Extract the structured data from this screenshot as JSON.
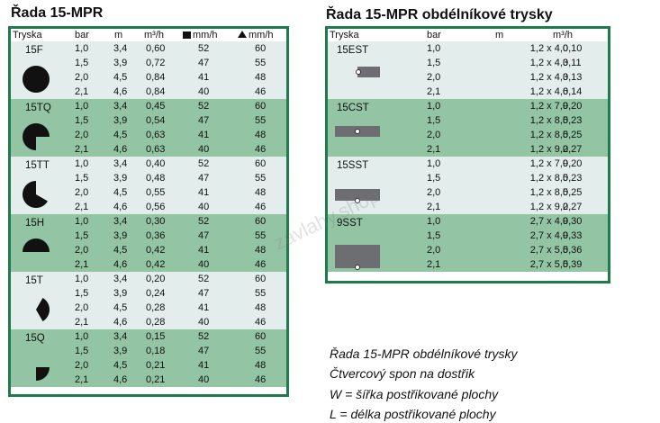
{
  "left": {
    "title": "Řada 15-MPR",
    "headers": {
      "nozzle": "Tryska",
      "bar": "bar",
      "m": "m",
      "flow": "m³/h",
      "sq": "mm/h",
      "tri": "mm/h"
    },
    "groups": [
      {
        "name": "15F",
        "shape": "full",
        "rows": [
          [
            "1,0",
            "3,4",
            "0,60",
            "52",
            "60"
          ],
          [
            "1,5",
            "3,9",
            "0,72",
            "47",
            "55"
          ],
          [
            "2,0",
            "4,5",
            "0,84",
            "41",
            "48"
          ],
          [
            "2,1",
            "4,6",
            "0,84",
            "40",
            "46"
          ]
        ]
      },
      {
        "name": "15TQ",
        "shape": "three-quarter",
        "rows": [
          [
            "1,0",
            "3,4",
            "0,45",
            "52",
            "60"
          ],
          [
            "1,5",
            "3,9",
            "0,54",
            "47",
            "55"
          ],
          [
            "2,0",
            "4,5",
            "0,63",
            "41",
            "48"
          ],
          [
            "2,1",
            "4,6",
            "0,63",
            "40",
            "46"
          ]
        ]
      },
      {
        "name": "15TT",
        "shape": "two-third",
        "rows": [
          [
            "1,0",
            "3,4",
            "0,40",
            "52",
            "60"
          ],
          [
            "1,5",
            "3,9",
            "0,48",
            "47",
            "55"
          ],
          [
            "2,0",
            "4,5",
            "0,55",
            "41",
            "48"
          ],
          [
            "2,1",
            "4,6",
            "0,56",
            "40",
            "46"
          ]
        ]
      },
      {
        "name": "15H",
        "shape": "half",
        "rows": [
          [
            "1,0",
            "3,4",
            "0,30",
            "52",
            "60"
          ],
          [
            "1,5",
            "3,9",
            "0,36",
            "47",
            "55"
          ],
          [
            "2,0",
            "4,5",
            "0,42",
            "41",
            "48"
          ],
          [
            "2,1",
            "4,6",
            "0,42",
            "40",
            "46"
          ]
        ]
      },
      {
        "name": "15T",
        "shape": "third",
        "rows": [
          [
            "1,0",
            "3,4",
            "0,20",
            "52",
            "60"
          ],
          [
            "1,5",
            "3,9",
            "0,24",
            "47",
            "55"
          ],
          [
            "2,0",
            "4,5",
            "0,28",
            "41",
            "48"
          ],
          [
            "2,1",
            "4,6",
            "0,28",
            "40",
            "46"
          ]
        ]
      },
      {
        "name": "15Q",
        "shape": "quarter",
        "rows": [
          [
            "1,0",
            "3,4",
            "0,15",
            "52",
            "60"
          ],
          [
            "1,5",
            "3,9",
            "0,18",
            "47",
            "55"
          ],
          [
            "2,0",
            "4,5",
            "0,21",
            "41",
            "48"
          ],
          [
            "2,1",
            "4,6",
            "0,21",
            "40",
            "46"
          ]
        ]
      }
    ]
  },
  "right": {
    "title": "Řada 15-MPR obdélníkové trysky",
    "headers": {
      "nozzle": "Tryska",
      "bar": "bar",
      "m": "m",
      "flow": "m³/h"
    },
    "groups": [
      {
        "name": "15EST",
        "shape": "end-strip",
        "rows": [
          [
            "1,0",
            "1,2 x 4,0",
            "0,10"
          ],
          [
            "1,5",
            "1,2 x 4,3",
            "0,11"
          ],
          [
            "2,0",
            "1,2 x 4,3",
            "0,13"
          ],
          [
            "2,1",
            "1,2 x 4,6",
            "0,14"
          ]
        ]
      },
      {
        "name": "15CST",
        "shape": "center-strip",
        "rows": [
          [
            "1,0",
            "1,2 x 7,9",
            "0,20"
          ],
          [
            "1,5",
            "1,2 x 8,5",
            "0,23"
          ],
          [
            "2,0",
            "1,2 x 8,5",
            "0,25"
          ],
          [
            "2,1",
            "1,2 x 9,2",
            "0,27"
          ]
        ]
      },
      {
        "name": "15SST",
        "shape": "side-strip",
        "rows": [
          [
            "1,0",
            "1,2 x 7,9",
            "0,20"
          ],
          [
            "1,5",
            "1,2 x 8,5",
            "0,23"
          ],
          [
            "2,0",
            "1,2 x 8,5",
            "0,25"
          ],
          [
            "2,1",
            "1,2 x 9,2",
            "0,27"
          ]
        ]
      },
      {
        "name": "9SST",
        "shape": "square-side",
        "rows": [
          [
            "1,0",
            "2,7 x 4,9",
            "0,30"
          ],
          [
            "1,5",
            "2,7 x 4,9",
            "0,33"
          ],
          [
            "2,0",
            "2,7 x 5,5",
            "0,36"
          ],
          [
            "2,1",
            "2,7 x 5,5",
            "0,39"
          ]
        ]
      }
    ]
  },
  "notes": [
    "Řada 15-MPR obdélníkové trysky",
    "Čtvercový spon na dostřik",
    "W = šířka postřikované plochy",
    "L = délka postřikované plochy"
  ],
  "watermark": "zavlahy.shop",
  "colors": {
    "light": "#e3eeec",
    "dark": "#93c5a4",
    "border": "#1f7a4c",
    "rect": "#6d6e71"
  }
}
